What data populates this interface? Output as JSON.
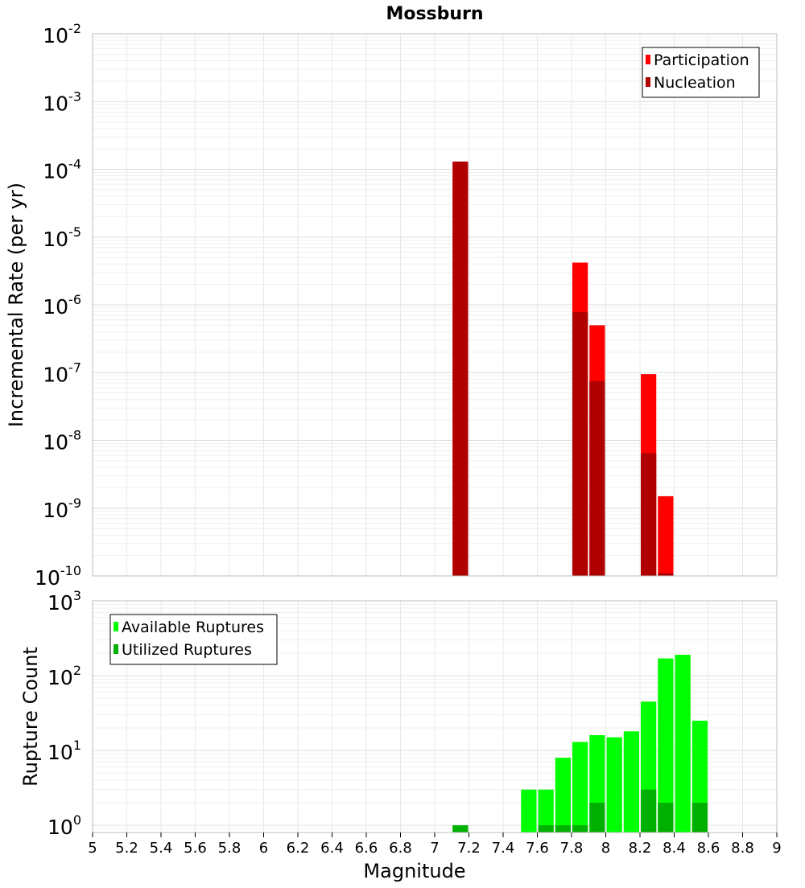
{
  "chart_data": [
    {
      "type": "bar",
      "title": "Mossburn",
      "xlabel": "",
      "ylabel": "Incremental Rate (per yr)",
      "yscale": "log",
      "xlim": [
        5,
        9
      ],
      "ylim": [
        1e-10,
        0.01
      ],
      "ytick_labels": [
        "10^-10",
        "10^-9",
        "10^-8",
        "10^-7",
        "10^-6",
        "10^-5",
        "10^-4",
        "10^-3",
        "10^-2"
      ],
      "legend": "top-right",
      "grid": true,
      "bar_width": 0.1,
      "series": [
        {
          "name": "Participation",
          "color": "#ff0000",
          "points": [
            {
              "x": 7.15,
              "y": 0.00013
            },
            {
              "x": 7.85,
              "y": 4.2e-06
            },
            {
              "x": 7.95,
              "y": 5e-07
            },
            {
              "x": 8.25,
              "y": 9.5e-08
            },
            {
              "x": 8.35,
              "y": 1.5e-09
            }
          ]
        },
        {
          "name": "Nucleation",
          "color": "#b00000",
          "points": [
            {
              "x": 7.15,
              "y": 0.00013
            },
            {
              "x": 7.85,
              "y": 7.8e-07
            },
            {
              "x": 7.95,
              "y": 7.5e-08
            },
            {
              "x": 8.25,
              "y": 6.5e-09
            },
            {
              "x": 8.35,
              "y": 1.1e-10
            }
          ]
        }
      ]
    },
    {
      "type": "bar",
      "title": "",
      "xlabel": "Magnitude",
      "ylabel": "Rupture Count",
      "yscale": "log",
      "xlim": [
        5,
        9
      ],
      "ylim": [
        0.8,
        1000
      ],
      "ytick_labels": [
        "10^0",
        "10^1",
        "10^2",
        "10^3"
      ],
      "xtick_labels": [
        "5",
        "5.2",
        "5.4",
        "5.6",
        "5.8",
        "6",
        "6.2",
        "6.4",
        "6.6",
        "6.8",
        "7",
        "7.2",
        "7.4",
        "7.6",
        "7.8",
        "8",
        "8.2",
        "8.4",
        "8.6",
        "8.8",
        "9"
      ],
      "legend": "top-left",
      "grid": true,
      "bar_width": 0.1,
      "series": [
        {
          "name": "Available Ruptures",
          "color": "#00ff00",
          "points": [
            {
              "x": 7.15,
              "y": 1
            },
            {
              "x": 7.55,
              "y": 3
            },
            {
              "x": 7.65,
              "y": 3
            },
            {
              "x": 7.75,
              "y": 8
            },
            {
              "x": 7.85,
              "y": 13
            },
            {
              "x": 7.95,
              "y": 16
            },
            {
              "x": 8.05,
              "y": 15
            },
            {
              "x": 8.15,
              "y": 18
            },
            {
              "x": 8.25,
              "y": 45
            },
            {
              "x": 8.35,
              "y": 170
            },
            {
              "x": 8.45,
              "y": 190
            },
            {
              "x": 8.55,
              "y": 25
            }
          ]
        },
        {
          "name": "Utilized Ruptures",
          "color": "#00b000",
          "points": [
            {
              "x": 7.15,
              "y": 1
            },
            {
              "x": 7.65,
              "y": 1
            },
            {
              "x": 7.75,
              "y": 1
            },
            {
              "x": 7.85,
              "y": 1
            },
            {
              "x": 7.95,
              "y": 2
            },
            {
              "x": 8.25,
              "y": 3
            },
            {
              "x": 8.35,
              "y": 2
            },
            {
              "x": 8.55,
              "y": 2
            }
          ]
        }
      ]
    }
  ]
}
